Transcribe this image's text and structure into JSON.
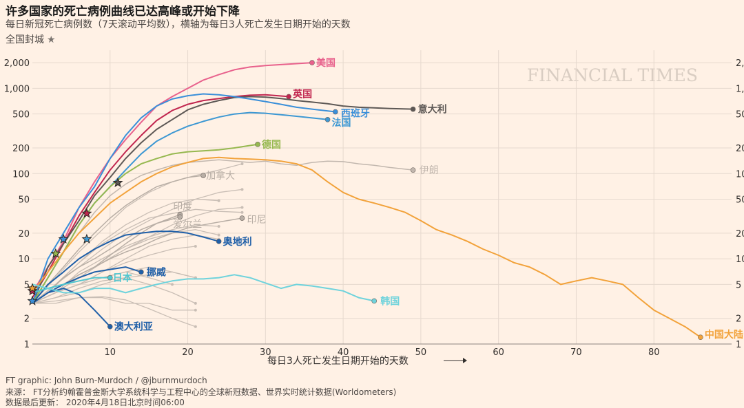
{
  "header": {
    "title": "许多国家的死亡病例曲线已达高峰或开始下降",
    "subtitle": "每日新冠死亡病例数（7天滚动平均数），横轴为每日3人死亡发生日期开始的天数",
    "lockdown_label": "全国封城",
    "lockdown_symbol": "★"
  },
  "watermark": "FINANCIAL TIMES",
  "footer": {
    "credit": "FT graphic: John Burn-Murdoch / @jburnmurdoch",
    "source": "来源：  FT分析约翰霍普金斯大学系统科学与工程中心的全球新冠数据、世界实时统计数据(Worldometers)",
    "updated": "数据最后更新：  2020年4月18日北京时间06:00"
  },
  "chart_data": {
    "type": "line",
    "title": "许多国家的死亡病例曲线已达高峰或开始下降",
    "xlabel": "每日3人死亡发生日期开始的天数",
    "ylabel": "",
    "xlim": [
      0,
      90
    ],
    "ylim": [
      1,
      2800
    ],
    "yscale": "log",
    "x_ticks": [
      10,
      20,
      30,
      40,
      50,
      60,
      70,
      80
    ],
    "x_tick_labels": [
      "10",
      "20",
      "30",
      "40",
      "50",
      "60",
      "70",
      "80"
    ],
    "y_ticks": [
      1,
      2,
      5,
      10,
      20,
      50,
      100,
      200,
      500,
      1000,
      2000
    ],
    "y_tick_labels": [
      "1",
      "2",
      "5",
      "10",
      "20",
      "50",
      "100",
      "200",
      "500",
      "1,000",
      "2,000"
    ],
    "grid": true,
    "legend": "direct-labels",
    "colors": {
      "background": "#fff1e5",
      "grid": "#e6d9ce",
      "axis_text": "#33302e",
      "grey": "#c9beb5"
    },
    "series": [
      {
        "name": "美国",
        "color": "#e8618c",
        "label_dx": 6,
        "label_dy": 0,
        "x": [
          0,
          2,
          4,
          6,
          8,
          10,
          12,
          14,
          16,
          18,
          20,
          22,
          24,
          26,
          28,
          30,
          32,
          34,
          36
        ],
        "y": [
          4,
          8,
          16,
          40,
          80,
          150,
          250,
          400,
          620,
          800,
          1000,
          1250,
          1450,
          1650,
          1780,
          1850,
          1900,
          1950,
          2000
        ]
      },
      {
        "name": "英国",
        "color": "#c1264f",
        "label_dx": 6,
        "label_dy": -4,
        "x": [
          0,
          2,
          4,
          6,
          8,
          10,
          12,
          14,
          16,
          18,
          20,
          22,
          24,
          26,
          28,
          30,
          33
        ],
        "y": [
          3.5,
          7,
          15,
          32,
          60,
          110,
          180,
          280,
          420,
          550,
          650,
          720,
          760,
          800,
          830,
          840,
          800
        ]
      },
      {
        "name": "意大利",
        "color": "#5d5855",
        "label_dx": 7,
        "label_dy": 0,
        "x": [
          0,
          2,
          4,
          6,
          8,
          10,
          12,
          14,
          16,
          18,
          20,
          22,
          24,
          26,
          28,
          30,
          32,
          34,
          36,
          38,
          40,
          42,
          44,
          46,
          49
        ],
        "y": [
          3,
          8,
          15,
          28,
          55,
          90,
          150,
          230,
          330,
          430,
          560,
          650,
          720,
          780,
          800,
          790,
          760,
          720,
          690,
          660,
          620,
          600,
          590,
          580,
          570
        ]
      },
      {
        "name": "西班牙",
        "color": "#3a8fd9",
        "label_dx": 8,
        "label_dy": 2,
        "x": [
          0,
          2,
          4,
          6,
          8,
          10,
          12,
          14,
          16,
          18,
          20,
          22,
          24,
          26,
          28,
          30,
          32,
          34,
          36,
          39
        ],
        "y": [
          3,
          10,
          20,
          40,
          70,
          150,
          280,
          450,
          620,
          750,
          820,
          860,
          840,
          800,
          750,
          700,
          650,
          600,
          570,
          530
        ]
      },
      {
        "name": "法国",
        "color": "#3d98d3",
        "label_dx": 6,
        "label_dy": 4,
        "x": [
          0,
          2,
          4,
          6,
          8,
          10,
          12,
          14,
          16,
          18,
          20,
          22,
          24,
          26,
          28,
          30,
          32,
          34,
          38
        ],
        "y": [
          3,
          6,
          12,
          25,
          45,
          70,
          110,
          170,
          240,
          300,
          360,
          410,
          460,
          500,
          520,
          510,
          490,
          470,
          430
        ]
      },
      {
        "name": "德国",
        "color": "#96b84f",
        "label_dx": 6,
        "label_dy": 0,
        "x": [
          0,
          2,
          4,
          6,
          8,
          10,
          12,
          14,
          16,
          18,
          20,
          22,
          24,
          26,
          29
        ],
        "y": [
          3,
          6,
          12,
          25,
          45,
          70,
          100,
          130,
          150,
          170,
          180,
          185,
          190,
          200,
          220
        ]
      },
      {
        "name": "伊朗",
        "color": "#c2b7ae",
        "label_dx": 9,
        "label_dy": 0,
        "x": [
          0,
          2,
          4,
          6,
          8,
          10,
          12,
          14,
          16,
          18,
          20,
          22,
          24,
          26,
          28,
          30,
          32,
          34,
          36,
          38,
          40,
          42,
          44,
          46,
          49
        ],
        "y": [
          4,
          7,
          12,
          20,
          35,
          55,
          75,
          95,
          110,
          125,
          135,
          140,
          145,
          140,
          135,
          140,
          130,
          125,
          135,
          140,
          138,
          130,
          125,
          118,
          110
        ]
      },
      {
        "name": "中国大陆",
        "color": "#f2a23a",
        "label_dx": 6,
        "label_dy": -4,
        "x": [
          0,
          2,
          4,
          6,
          8,
          10,
          12,
          14,
          16,
          18,
          20,
          22,
          24,
          26,
          28,
          30,
          32,
          34,
          36,
          38,
          40,
          42,
          44,
          46,
          48,
          50,
          52,
          54,
          56,
          58,
          60,
          62,
          64,
          66,
          68,
          70,
          72,
          74,
          76,
          78,
          80,
          82,
          84,
          86
        ],
        "y": [
          4,
          7,
          12,
          20,
          30,
          45,
          60,
          80,
          100,
          120,
          135,
          150,
          155,
          150,
          148,
          145,
          140,
          130,
          110,
          80,
          60,
          50,
          45,
          40,
          35,
          28,
          22,
          19,
          16,
          13,
          11,
          9,
          8,
          6.5,
          5,
          5.5,
          6,
          5.5,
          5,
          3.5,
          2.5,
          2,
          1.6,
          1.2
        ]
      },
      {
        "name": "奥地利",
        "color": "#1f5fa8",
        "label_dx": 6,
        "label_dy": 0,
        "x": [
          0,
          2,
          4,
          6,
          8,
          10,
          12,
          14,
          16,
          18,
          20,
          22,
          24
        ],
        "y": [
          3,
          5,
          7,
          10,
          13,
          16,
          19,
          20,
          21,
          21,
          20,
          18,
          16
        ]
      },
      {
        "name": "挪威",
        "color": "#1f5fa8",
        "label_dx": 8,
        "label_dy": 0,
        "x": [
          0,
          2,
          4,
          6,
          8,
          10,
          12,
          14
        ],
        "y": [
          3,
          4,
          5,
          6,
          7,
          7.5,
          8,
          7
        ]
      },
      {
        "name": "澳大利亚",
        "color": "#1f5fa8",
        "label_dx": 6,
        "label_dy": 0,
        "x": [
          0,
          2,
          4,
          6,
          8,
          10
        ],
        "y": [
          3,
          4,
          4.5,
          3.8,
          2.5,
          1.6
        ]
      },
      {
        "name": "日本",
        "color": "#4fc6cf",
        "label_dx": 4,
        "label_dy": 0,
        "x": [
          0,
          2,
          4,
          6,
          8,
          10
        ],
        "y": [
          4,
          4.5,
          5,
          5.5,
          6,
          6
        ]
      },
      {
        "name": "韩国",
        "color": "#6fd3dc",
        "label_dx": 9,
        "label_dy": 0,
        "x": [
          0,
          2,
          4,
          6,
          8,
          10,
          12,
          14,
          16,
          18,
          20,
          22,
          24,
          26,
          28,
          30,
          32,
          34,
          36,
          38,
          40,
          42,
          44
        ],
        "y": [
          5,
          4.5,
          4,
          4,
          4.5,
          4.5,
          4,
          4.5,
          5,
          5.5,
          5.8,
          5.8,
          6,
          6.5,
          6,
          5.2,
          4.5,
          5,
          4.8,
          4.5,
          4.2,
          3.5,
          3.2
        ]
      },
      {
        "name": "加拿大",
        "color": "#b8aea5",
        "label_dx": 4,
        "label_dy": 0,
        "x": [
          0,
          2,
          4,
          6,
          8,
          10,
          12,
          14,
          16,
          18,
          20,
          22
        ],
        "y": [
          3,
          5,
          8,
          13,
          20,
          30,
          42,
          55,
          70,
          80,
          90,
          95
        ]
      },
      {
        "name": "印度",
        "color": "#b8aea5",
        "label_dx": -10,
        "label_dy": -12,
        "x": [
          0,
          2,
          4,
          6,
          8,
          10,
          12,
          14,
          16,
          19
        ],
        "y": [
          3,
          4,
          5,
          6.5,
          8,
          11,
          15,
          20,
          26,
          33
        ]
      },
      {
        "name": "爱尔兰",
        "color": "#b8aea5",
        "label_dx": -10,
        "label_dy": 10,
        "x": [
          0,
          2,
          4,
          6,
          8,
          10,
          12,
          14,
          16,
          19
        ],
        "y": [
          3,
          4,
          6,
          8,
          10,
          13,
          17,
          22,
          26,
          31
        ]
      },
      {
        "name": "印尼",
        "color": "#b8aea5",
        "label_dx": 7,
        "label_dy": 2,
        "x": [
          0,
          2,
          4,
          6,
          8,
          10,
          12,
          14,
          16,
          18,
          20,
          22,
          24,
          27
        ],
        "y": [
          3,
          4,
          5,
          6.5,
          8,
          10,
          12,
          14,
          17,
          20,
          23,
          25,
          27,
          30
        ]
      }
    ],
    "background_series": [
      {
        "x": [
          0,
          3,
          6,
          9,
          12,
          15,
          18,
          21,
          24,
          27
        ],
        "y": [
          3,
          5,
          9,
          15,
          22,
          30,
          34,
          38,
          36,
          35
        ]
      },
      {
        "x": [
          0,
          3,
          6,
          9,
          12,
          15,
          18,
          21,
          24
        ],
        "y": [
          3,
          4,
          7,
          10,
          14,
          18,
          22,
          25,
          24
        ]
      },
      {
        "x": [
          0,
          3,
          6,
          9,
          12,
          15,
          18,
          21
        ],
        "y": [
          3,
          4,
          5,
          7,
          9,
          11,
          13,
          14
        ]
      },
      {
        "x": [
          0,
          3,
          6,
          9,
          12,
          15,
          18,
          21,
          24,
          27
        ],
        "y": [
          3,
          6,
          12,
          22,
          40,
          60,
          80,
          95,
          110,
          130
        ]
      },
      {
        "x": [
          0,
          3,
          6,
          9,
          12,
          15,
          18,
          21,
          24
        ],
        "y": [
          3,
          5,
          9,
          16,
          25,
          35,
          45,
          50,
          48
        ]
      },
      {
        "x": [
          0,
          3,
          6,
          9,
          12,
          15,
          18,
          21,
          24
        ],
        "y": [
          3,
          4,
          5,
          7,
          10,
          14,
          17,
          19,
          17
        ]
      },
      {
        "x": [
          0,
          3,
          6,
          9,
          12,
          15,
          18,
          21
        ],
        "y": [
          3,
          3.5,
          4,
          5,
          6,
          6.5,
          7,
          6
        ]
      },
      {
        "x": [
          0,
          3,
          6,
          9,
          12,
          15,
          18,
          21
        ],
        "y": [
          3,
          4,
          5,
          6,
          7,
          8,
          7,
          6
        ]
      },
      {
        "x": [
          0,
          3,
          6,
          9,
          12,
          15,
          18,
          21
        ],
        "y": [
          3,
          3,
          3.5,
          3.5,
          3,
          3,
          2.5,
          2.5
        ]
      },
      {
        "x": [
          0,
          3,
          6,
          9,
          12,
          15,
          18,
          21
        ],
        "y": [
          3,
          3.2,
          3.5,
          3.6,
          3.3,
          2.6,
          2,
          1.6
        ]
      },
      {
        "x": [
          0,
          3,
          6,
          9,
          12,
          15,
          18,
          21,
          24
        ],
        "y": [
          3,
          4,
          6,
          9,
          13,
          17,
          20,
          22,
          19
        ]
      },
      {
        "x": [
          0,
          3,
          6,
          9,
          12,
          15,
          18,
          21,
          24,
          27
        ],
        "y": [
          3,
          4,
          6,
          9,
          13,
          18,
          25,
          32,
          38,
          40
        ]
      },
      {
        "x": [
          0,
          3,
          6,
          9,
          12,
          15,
          18,
          21,
          24,
          27
        ],
        "y": [
          3,
          5,
          8,
          13,
          20,
          28,
          38,
          50,
          60,
          65
        ]
      },
      {
        "x": [
          0,
          3,
          6,
          9,
          12,
          15,
          18,
          21
        ],
        "y": [
          3,
          3.5,
          4.5,
          5.5,
          6,
          5,
          4,
          3
        ]
      },
      {
        "x": [
          0,
          3,
          6,
          9,
          12,
          15,
          18
        ],
        "y": [
          3,
          4,
          5,
          6,
          7,
          6,
          5
        ]
      }
    ],
    "lockdown_markers": [
      {
        "x": 0,
        "y": 3.2,
        "color": "#3a8fd9"
      },
      {
        "x": 0,
        "y": 4.2,
        "color": "#c1264f"
      },
      {
        "x": 0,
        "y": 4.5,
        "color": "#f2a23a"
      },
      {
        "x": 3,
        "y": 11.5,
        "color": "#96b84f"
      },
      {
        "x": 4,
        "y": 17,
        "color": "#3a8fd9"
      },
      {
        "x": 7,
        "y": 17,
        "color": "#3d98d3"
      },
      {
        "x": 7,
        "y": 34,
        "color": "#c1264f"
      },
      {
        "x": 11,
        "y": 78,
        "color": "#5d5855"
      }
    ]
  }
}
